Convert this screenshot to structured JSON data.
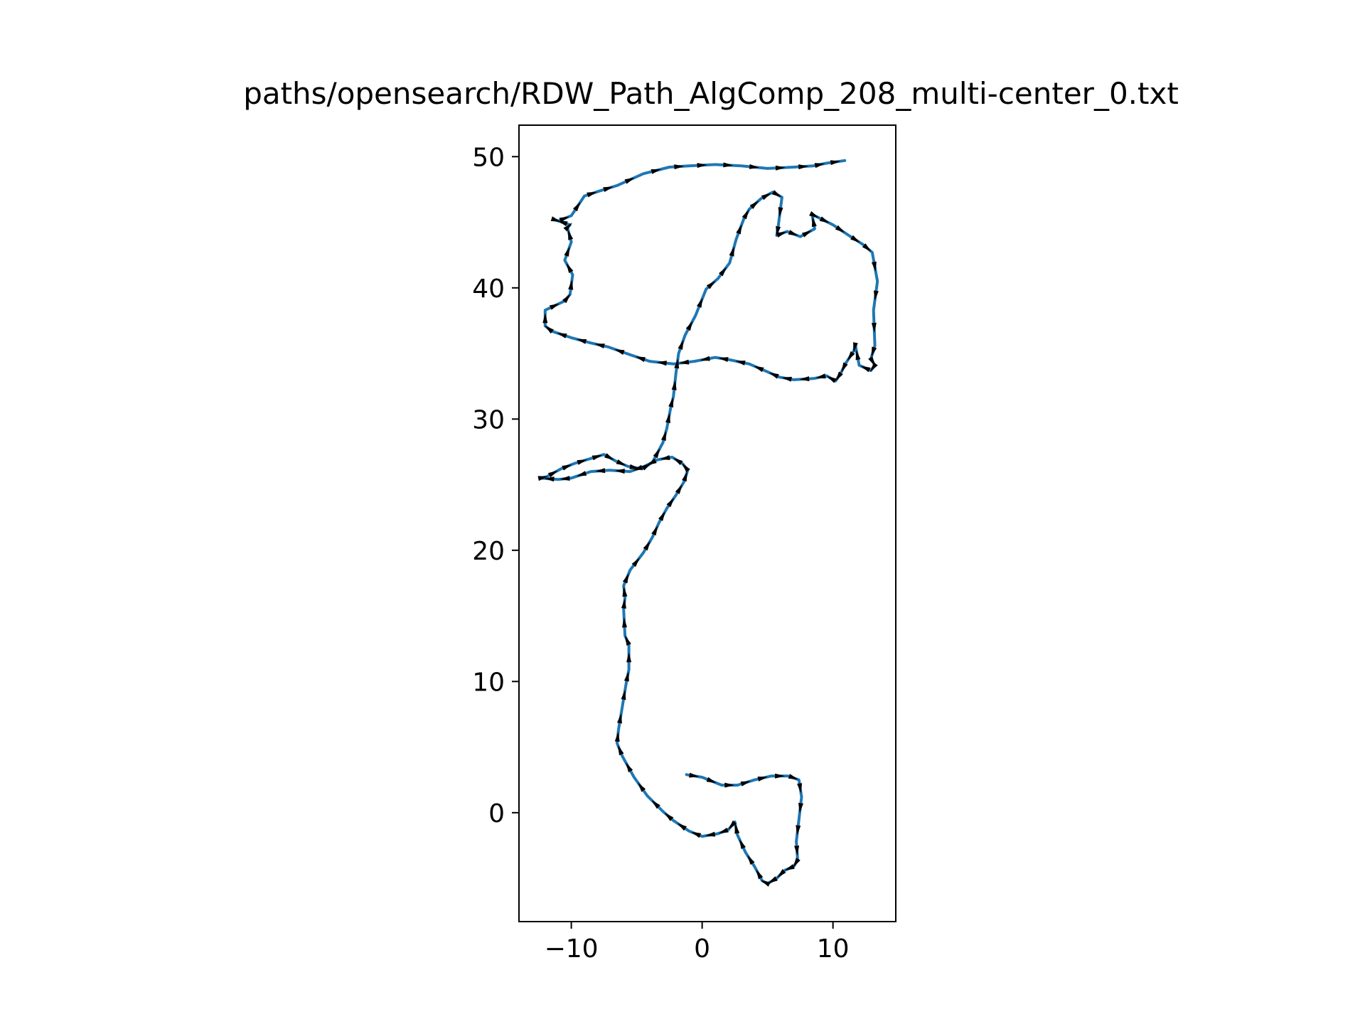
{
  "chart_data": {
    "type": "line",
    "title": "paths/opensearch/RDW_Path_AlgComp_208_multi-center_0.txt",
    "xlabel": "",
    "ylabel": "",
    "xlim": [
      -14,
      14.8
    ],
    "ylim": [
      -8.3,
      52.4
    ],
    "xticks": [
      -10,
      0,
      10
    ],
    "xtick_labels": [
      "−10",
      "0",
      "10"
    ],
    "yticks": [
      0,
      10,
      20,
      30,
      40,
      50
    ],
    "ytick_labels": [
      "0",
      "10",
      "20",
      "30",
      "40",
      "50"
    ],
    "grid": false,
    "legend": "none",
    "colors": {
      "path": "#1f77b4",
      "arrows": "#000000",
      "axes": "#000000",
      "background": "#ffffff"
    },
    "series": [
      {
        "x": [
          -1.2,
          0.0,
          1.5,
          2.7,
          4.0,
          5.3,
          6.6,
          7.4,
          7.6,
          7.4,
          7.2,
          7.3,
          7.0,
          6.3,
          5.7,
          5.0,
          4.6,
          4.0,
          3.3,
          2.7,
          2.5,
          2.0,
          1.2,
          0.0,
          -1.0,
          -2.2,
          -3.0,
          -4.2,
          -5.2,
          -6.1,
          -6.5,
          -6.4,
          -6.1,
          -5.8,
          -5.6,
          -5.6,
          -5.9,
          -6.0,
          -5.9,
          -6.0,
          -5.5,
          -4.5,
          -3.8,
          -3.3,
          -2.7,
          -2.0,
          -1.4,
          -1.1,
          -1.5,
          -2.3,
          -3.4,
          -4.4,
          -5.5,
          -7.1,
          -8.5,
          -10.0,
          -11.0,
          -12.4,
          -11.9,
          -10.8,
          -9.8,
          -8.5,
          -7.5,
          -6.6,
          -5.7,
          -4.6,
          -3.8,
          -3.0,
          -2.7,
          -2.4,
          -2.2,
          -2.0,
          -1.8,
          -1.3,
          -0.5,
          0.3,
          1.2,
          2.1,
          2.6,
          3.2,
          3.6,
          4.5,
          5.4,
          6.1,
          5.8,
          5.7,
          6.5,
          7.5,
          8.6,
          8.4,
          8.8,
          10.0,
          11.2,
          12.3,
          13.0,
          13.4,
          13.1,
          13.2,
          12.9,
          13.2,
          12.9,
          12.0,
          11.7,
          11.6,
          11.0,
          10.6,
          10.2,
          9.5,
          8.6,
          7.0,
          5.9,
          5.0,
          3.6,
          2.2,
          1.0,
          -0.6,
          -2.2,
          -4.0,
          -5.5,
          -7.2,
          -8.5,
          -10.0,
          -11.5,
          -12.0,
          -12.0,
          -10.5,
          -10.1,
          -9.9,
          -10.5,
          -10.0,
          -10.3,
          -10.1,
          -11.3,
          -11.0,
          -10.0,
          -9.0,
          -7.8,
          -6.5,
          -4.5,
          -2.5,
          -1.0,
          1.0,
          3.0,
          5.0,
          7.0,
          8.5,
          9.5,
          10.9
        ],
        "y": [
          2.9,
          2.7,
          2.1,
          2.1,
          2.5,
          2.8,
          2.8,
          2.5,
          1.2,
          -0.5,
          -2.2,
          -3.6,
          -4.1,
          -4.4,
          -5.0,
          -5.4,
          -5.2,
          -4.1,
          -3.0,
          -1.7,
          -0.7,
          -1.3,
          -1.6,
          -1.8,
          -1.4,
          -0.6,
          0.1,
          1.3,
          2.7,
          4.3,
          5.3,
          6.3,
          8.1,
          9.9,
          10.9,
          12.8,
          13.5,
          15.5,
          16.4,
          17.3,
          18.5,
          19.8,
          21.0,
          22.1,
          23.2,
          24.2,
          25.2,
          26.1,
          26.6,
          27.1,
          26.9,
          26.4,
          26.0,
          26.1,
          26.0,
          25.5,
          25.4,
          25.5,
          25.6,
          26.2,
          26.6,
          27.0,
          27.3,
          26.8,
          26.4,
          26.2,
          26.7,
          28.2,
          29.3,
          30.9,
          31.7,
          33.5,
          35.0,
          36.4,
          37.9,
          39.9,
          40.7,
          41.9,
          43.7,
          45.3,
          46.0,
          46.8,
          47.3,
          46.9,
          44.6,
          44.0,
          44.3,
          43.9,
          44.5,
          45.6,
          45.4,
          44.8,
          44.0,
          43.3,
          42.7,
          40.5,
          38.3,
          35.6,
          34.6,
          34.1,
          33.7,
          34.1,
          35.7,
          35.2,
          34.3,
          33.5,
          32.9,
          33.3,
          33.1,
          33.0,
          33.2,
          33.6,
          34.2,
          34.5,
          34.7,
          34.4,
          34.2,
          34.4,
          34.9,
          35.5,
          35.8,
          36.2,
          36.7,
          37.1,
          38.3,
          39.0,
          39.5,
          41.0,
          42.1,
          43.5,
          44.6,
          44.8,
          45.2,
          45.1,
          45.5,
          47.0,
          47.4,
          47.8,
          48.7,
          49.2,
          49.3,
          49.4,
          49.3,
          49.1,
          49.2,
          49.3,
          49.5,
          49.7
        ]
      }
    ]
  }
}
